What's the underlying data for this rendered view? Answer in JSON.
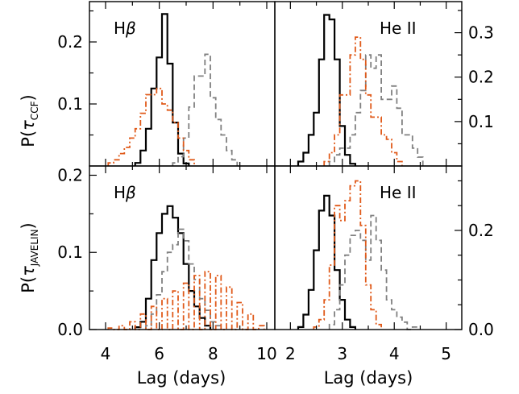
{
  "figure": {
    "xlabel": "Lag (days)",
    "ylabel_top_main": "P(",
    "ylabel_top_tau": "τ",
    "ylabel_top_sub": "CCF",
    "ylabel_top_close": ")",
    "ylabel_bottom_main": "P(",
    "ylabel_bottom_tau": "τ",
    "ylabel_bottom_sub": "JAVELIN",
    "ylabel_bottom_close": ")"
  },
  "colors": {
    "series_solid": "#000000",
    "series_dashed": "#808080",
    "series_dashdot": "#e05a1a"
  },
  "chart_data": [
    {
      "id": "ccf_hbeta",
      "type": "histogram",
      "label": "Hβ",
      "label_main": "H",
      "label_greek": "β",
      "xlim": [
        3.4,
        10.3
      ],
      "ylim": [
        0,
        0.265
      ],
      "yticks": [
        0.1,
        0.2
      ],
      "ytick_labels": [
        "0.1",
        "0.2"
      ],
      "ytick_side": "left",
      "xticks": [
        4,
        6,
        8,
        10
      ],
      "xtick_labels": [],
      "bin_width": 0.2,
      "series": [
        {
          "style": "solid",
          "bins": [
            [
              5.2,
              0.005
            ],
            [
              5.4,
              0.025
            ],
            [
              5.6,
              0.06
            ],
            [
              5.8,
              0.125
            ],
            [
              6.0,
              0.175
            ],
            [
              6.2,
              0.245
            ],
            [
              6.4,
              0.165
            ],
            [
              6.6,
              0.07
            ],
            [
              6.8,
              0.02
            ],
            [
              7.0,
              0.004
            ]
          ]
        },
        {
          "style": "dashed",
          "bins": [
            [
              6.6,
              0.005
            ],
            [
              6.8,
              0.015
            ],
            [
              7.0,
              0.045
            ],
            [
              7.2,
              0.095
            ],
            [
              7.4,
              0.145
            ],
            [
              7.6,
              0.145
            ],
            [
              7.8,
              0.18
            ],
            [
              8.0,
              0.11
            ],
            [
              8.2,
              0.075
            ],
            [
              8.4,
              0.05
            ],
            [
              8.6,
              0.025
            ],
            [
              8.8,
              0.01
            ]
          ]
        },
        {
          "style": "dashdot",
          "bins": [
            [
              4.2,
              0.005
            ],
            [
              4.4,
              0.01
            ],
            [
              4.6,
              0.02
            ],
            [
              4.8,
              0.03
            ],
            [
              5.0,
              0.045
            ],
            [
              5.2,
              0.06
            ],
            [
              5.4,
              0.085
            ],
            [
              5.6,
              0.115
            ],
            [
              5.8,
              0.115
            ],
            [
              6.0,
              0.125
            ],
            [
              6.2,
              0.1
            ],
            [
              6.4,
              0.09
            ],
            [
              6.6,
              0.07
            ],
            [
              6.8,
              0.045
            ],
            [
              7.0,
              0.025
            ],
            [
              7.2,
              0.01
            ]
          ]
        }
      ]
    },
    {
      "id": "ccf_heii",
      "type": "histogram",
      "label": "He II",
      "xlim": [
        1.7,
        5.3
      ],
      "ylim": [
        0,
        0.37
      ],
      "yticks": [
        0.1,
        0.2,
        0.3
      ],
      "ytick_labels": [
        "0.1",
        "0.2",
        "0.3"
      ],
      "ytick_side": "right",
      "xticks": [
        2,
        3,
        4,
        5
      ],
      "xtick_labels": [],
      "bin_width": 0.1,
      "series": [
        {
          "style": "solid",
          "bins": [
            [
              2.2,
              0.01
            ],
            [
              2.3,
              0.03
            ],
            [
              2.4,
              0.07
            ],
            [
              2.5,
              0.12
            ],
            [
              2.6,
              0.24
            ],
            [
              2.7,
              0.34
            ],
            [
              2.8,
              0.33
            ],
            [
              2.9,
              0.24
            ],
            [
              3.0,
              0.09
            ],
            [
              3.1,
              0.025
            ],
            [
              3.2,
              0.005
            ]
          ]
        },
        {
          "style": "dashed",
          "bins": [
            [
              2.8,
              0.01
            ],
            [
              2.9,
              0.025
            ],
            [
              3.0,
              0.04
            ],
            [
              3.1,
              0.04
            ],
            [
              3.2,
              0.07
            ],
            [
              3.3,
              0.12
            ],
            [
              3.4,
              0.17
            ],
            [
              3.5,
              0.25
            ],
            [
              3.6,
              0.22
            ],
            [
              3.7,
              0.25
            ],
            [
              3.8,
              0.15
            ],
            [
              3.9,
              0.15
            ],
            [
              4.0,
              0.18
            ],
            [
              4.1,
              0.13
            ],
            [
              4.2,
              0.07
            ],
            [
              4.3,
              0.07
            ],
            [
              4.4,
              0.04
            ],
            [
              4.5,
              0.02
            ]
          ]
        },
        {
          "style": "dashdot",
          "bins": [
            [
              2.7,
              0.01
            ],
            [
              2.8,
              0.03
            ],
            [
              2.9,
              0.07
            ],
            [
              3.0,
              0.16
            ],
            [
              3.1,
              0.16
            ],
            [
              3.2,
              0.25
            ],
            [
              3.3,
              0.29
            ],
            [
              3.4,
              0.24
            ],
            [
              3.5,
              0.16
            ],
            [
              3.6,
              0.11
            ],
            [
              3.7,
              0.11
            ],
            [
              3.8,
              0.07
            ],
            [
              3.9,
              0.06
            ],
            [
              4.0,
              0.03
            ],
            [
              4.1,
              0.01
            ]
          ]
        }
      ]
    },
    {
      "id": "javelin_hbeta",
      "type": "histogram",
      "label": "Hβ",
      "label_main": "H",
      "label_greek": "β",
      "xlim": [
        3.4,
        10.3
      ],
      "ylim": [
        0,
        0.212
      ],
      "yticks": [
        0.0,
        0.1,
        0.2
      ],
      "ytick_labels": [
        "0.0",
        "0.1",
        "0.2"
      ],
      "ytick_side": "left",
      "xticks": [
        4,
        6,
        8,
        10
      ],
      "xtick_labels": [
        "4",
        "6",
        "8",
        "10"
      ],
      "bin_width": 0.2,
      "series": [
        {
          "style": "solid",
          "bins": [
            [
              5.2,
              0.003
            ],
            [
              5.4,
              0.01
            ],
            [
              5.6,
              0.04
            ],
            [
              5.8,
              0.09
            ],
            [
              6.0,
              0.125
            ],
            [
              6.2,
              0.15
            ],
            [
              6.4,
              0.16
            ],
            [
              6.6,
              0.145
            ],
            [
              6.8,
              0.125
            ],
            [
              7.0,
              0.085
            ],
            [
              7.2,
              0.05
            ],
            [
              7.4,
              0.03
            ],
            [
              7.6,
              0.015
            ],
            [
              7.8,
              0.005
            ]
          ]
        },
        {
          "style": "dashed",
          "bins": [
            [
              5.6,
              0.005
            ],
            [
              5.8,
              0.02
            ],
            [
              6.0,
              0.045
            ],
            [
              6.2,
              0.075
            ],
            [
              6.4,
              0.1
            ],
            [
              6.6,
              0.11
            ],
            [
              6.8,
              0.13
            ],
            [
              7.0,
              0.115
            ],
            [
              7.2,
              0.085
            ],
            [
              7.4,
              0.065
            ],
            [
              7.6,
              0.04
            ],
            [
              7.8,
              0.025
            ],
            [
              8.0,
              0.01
            ],
            [
              8.2,
              0.005
            ]
          ]
        },
        {
          "style": "dashdot",
          "bins": [
            [
              4.2,
              0.002
            ],
            [
              4.6,
              0.005
            ],
            [
              5.0,
              0.01
            ],
            [
              5.4,
              0.02
            ],
            [
              5.8,
              0.03
            ],
            [
              6.2,
              0.04
            ],
            [
              6.6,
              0.05
            ],
            [
              7.0,
              0.06
            ],
            [
              7.4,
              0.07
            ],
            [
              7.8,
              0.075
            ],
            [
              8.2,
              0.07
            ],
            [
              8.6,
              0.055
            ],
            [
              9.0,
              0.035
            ],
            [
              9.4,
              0.02
            ],
            [
              9.8,
              0.005
            ]
          ]
        }
      ]
    },
    {
      "id": "javelin_heii",
      "type": "histogram",
      "label": "He II",
      "xlim": [
        1.7,
        5.3
      ],
      "ylim": [
        0,
        0.33
      ],
      "yticks": [
        0.0,
        0.2
      ],
      "ytick_labels": [
        "0.0",
        "0.2"
      ],
      "ytick_side": "right",
      "xticks": [
        2,
        3,
        4,
        5
      ],
      "xtick_labels": [
        "2",
        "3",
        "4",
        "5"
      ],
      "bin_width": 0.1,
      "series": [
        {
          "style": "solid",
          "bins": [
            [
              2.2,
              0.005
            ],
            [
              2.3,
              0.03
            ],
            [
              2.4,
              0.08
            ],
            [
              2.5,
              0.16
            ],
            [
              2.6,
              0.24
            ],
            [
              2.7,
              0.27
            ],
            [
              2.8,
              0.23
            ],
            [
              2.9,
              0.12
            ],
            [
              3.0,
              0.06
            ],
            [
              3.1,
              0.02
            ],
            [
              3.2,
              0.005
            ]
          ]
        },
        {
          "style": "dashed",
          "bins": [
            [
              2.8,
              0.01
            ],
            [
              2.9,
              0.04
            ],
            [
              3.0,
              0.09
            ],
            [
              3.1,
              0.15
            ],
            [
              3.2,
              0.19
            ],
            [
              3.3,
              0.2
            ],
            [
              3.4,
              0.18
            ],
            [
              3.5,
              0.14
            ],
            [
              3.6,
              0.23
            ],
            [
              3.7,
              0.18
            ],
            [
              3.8,
              0.12
            ],
            [
              3.9,
              0.06
            ],
            [
              4.0,
              0.04
            ],
            [
              4.1,
              0.025
            ],
            [
              4.2,
              0.015
            ],
            [
              4.4,
              0.005
            ]
          ]
        },
        {
          "style": "dashdot",
          "bins": [
            [
              2.5,
              0.005
            ],
            [
              2.6,
              0.02
            ],
            [
              2.7,
              0.06
            ],
            [
              2.8,
              0.13
            ],
            [
              2.9,
              0.25
            ],
            [
              3.0,
              0.22
            ],
            [
              3.1,
              0.26
            ],
            [
              3.2,
              0.29
            ],
            [
              3.3,
              0.3
            ],
            [
              3.4,
              0.21
            ],
            [
              3.5,
              0.09
            ],
            [
              3.6,
              0.04
            ],
            [
              3.7,
              0.01
            ]
          ]
        }
      ]
    }
  ]
}
